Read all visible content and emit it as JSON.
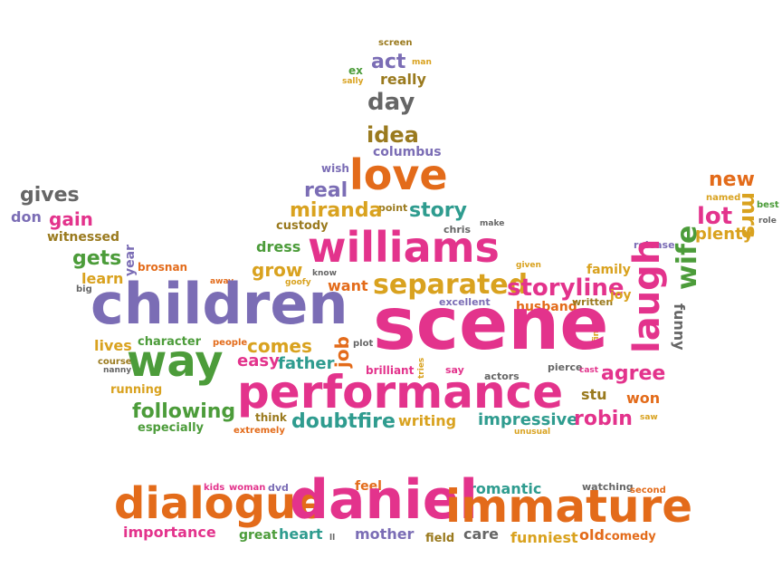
{
  "colors": {
    "orange": "#e36b1a",
    "pink": "#e3338c",
    "purple": "#7b6db5",
    "green": "#4c9c3a",
    "yellow": "#d9a21f",
    "brown": "#9a7a1e",
    "gray": "#666666",
    "teal": "#2f9c8f"
  },
  "words": [
    {
      "text": "screen",
      "color": "brown",
      "size": 10
    },
    {
      "text": "act",
      "color": "purple",
      "size": 22
    },
    {
      "text": "man",
      "color": "yellow",
      "size": 9
    },
    {
      "text": "ex",
      "color": "green",
      "size": 12
    },
    {
      "text": "sally",
      "color": "yellow",
      "size": 9
    },
    {
      "text": "really",
      "color": "brown",
      "size": 16
    },
    {
      "text": "day",
      "color": "gray",
      "size": 26
    },
    {
      "text": "idea",
      "color": "brown",
      "size": 24
    },
    {
      "text": "columbus",
      "color": "purple",
      "size": 14
    },
    {
      "text": "wish",
      "color": "purple",
      "size": 12
    },
    {
      "text": "love",
      "color": "orange",
      "size": 46
    },
    {
      "text": "real",
      "color": "purple",
      "size": 22
    },
    {
      "text": "point",
      "color": "brown",
      "size": 11
    },
    {
      "text": "story",
      "color": "teal",
      "size": 22
    },
    {
      "text": "miranda",
      "color": "yellow",
      "size": 22
    },
    {
      "text": "custody",
      "color": "brown",
      "size": 13
    },
    {
      "text": "make",
      "color": "gray",
      "size": 9
    },
    {
      "text": "chris",
      "color": "gray",
      "size": 11
    },
    {
      "text": "williams",
      "color": "pink",
      "size": 46
    },
    {
      "text": "dress",
      "color": "green",
      "size": 16
    },
    {
      "text": "know",
      "color": "gray",
      "size": 9
    },
    {
      "text": "goofy",
      "color": "yellow",
      "size": 9
    },
    {
      "text": "grow",
      "color": "yellow",
      "size": 20
    },
    {
      "text": "want",
      "color": "orange",
      "size": 16
    },
    {
      "text": "separated",
      "color": "yellow",
      "size": 30
    },
    {
      "text": "storyline",
      "color": "pink",
      "size": 26
    },
    {
      "text": "given",
      "color": "yellow",
      "size": 9
    },
    {
      "text": "excellent",
      "color": "purple",
      "size": 11
    },
    {
      "text": "husband",
      "color": "orange",
      "size": 14
    },
    {
      "text": "written",
      "color": "brown",
      "size": 11
    },
    {
      "text": "family",
      "color": "yellow",
      "size": 14
    },
    {
      "text": "joy",
      "color": "yellow",
      "size": 14
    },
    {
      "text": "release",
      "color": "purple",
      "size": 11
    },
    {
      "text": "new",
      "color": "orange",
      "size": 22
    },
    {
      "text": "named",
      "color": "yellow",
      "size": 10
    },
    {
      "text": "best",
      "color": "green",
      "size": 10
    },
    {
      "text": "role",
      "color": "gray",
      "size": 9
    },
    {
      "text": "lot",
      "color": "pink",
      "size": 26
    },
    {
      "text": "plenty",
      "color": "yellow",
      "size": 18
    },
    {
      "text": "mrs",
      "color": "yellow",
      "size": 24
    },
    {
      "text": "wife",
      "color": "green",
      "size": 30
    },
    {
      "text": "laugh",
      "color": "pink",
      "size": 40
    },
    {
      "text": "funny",
      "color": "gray",
      "size": 16
    },
    {
      "text": "fine",
      "color": "yellow",
      "size": 9
    },
    {
      "text": "gives",
      "color": "gray",
      "size": 22
    },
    {
      "text": "don",
      "color": "purple",
      "size": 16
    },
    {
      "text": "gain",
      "color": "pink",
      "size": 20
    },
    {
      "text": "witnessed",
      "color": "brown",
      "size": 14
    },
    {
      "text": "gets",
      "color": "green",
      "size": 22
    },
    {
      "text": "year",
      "color": "purple",
      "size": 14
    },
    {
      "text": "brosnan",
      "color": "orange",
      "size": 12
    },
    {
      "text": "learn",
      "color": "yellow",
      "size": 16
    },
    {
      "text": "big",
      "color": "gray",
      "size": 10
    },
    {
      "text": "away",
      "color": "orange",
      "size": 9
    },
    {
      "text": "children",
      "color": "purple",
      "size": 62
    },
    {
      "text": "scene",
      "color": "pink",
      "size": 80
    },
    {
      "text": "job",
      "color": "orange",
      "size": 20
    },
    {
      "text": "plot",
      "color": "gray",
      "size": 10
    },
    {
      "text": "lives",
      "color": "yellow",
      "size": 16
    },
    {
      "text": "character",
      "color": "green",
      "size": 13
    },
    {
      "text": "people",
      "color": "orange",
      "size": 10
    },
    {
      "text": "comes",
      "color": "yellow",
      "size": 20
    },
    {
      "text": "course",
      "color": "brown",
      "size": 10
    },
    {
      "text": "nanny",
      "color": "gray",
      "size": 9
    },
    {
      "text": "way",
      "color": "green",
      "size": 48
    },
    {
      "text": "easy",
      "color": "pink",
      "size": 18
    },
    {
      "text": "father",
      "color": "teal",
      "size": 18
    },
    {
      "text": "brilliant",
      "color": "pink",
      "size": 12
    },
    {
      "text": "tries",
      "color": "yellow",
      "size": 9
    },
    {
      "text": "say",
      "color": "pink",
      "size": 11
    },
    {
      "text": "actors",
      "color": "gray",
      "size": 11
    },
    {
      "text": "pierce",
      "color": "gray",
      "size": 11
    },
    {
      "text": "cast",
      "color": "pink",
      "size": 9
    },
    {
      "text": "agree",
      "color": "pink",
      "size": 22
    },
    {
      "text": "running",
      "color": "yellow",
      "size": 13
    },
    {
      "text": "performance",
      "color": "pink",
      "size": 50
    },
    {
      "text": "stu",
      "color": "brown",
      "size": 16
    },
    {
      "text": "won",
      "color": "orange",
      "size": 16
    },
    {
      "text": "following",
      "color": "green",
      "size": 22
    },
    {
      "text": "especially",
      "color": "green",
      "size": 13
    },
    {
      "text": "think",
      "color": "brown",
      "size": 12
    },
    {
      "text": "extremely",
      "color": "orange",
      "size": 10
    },
    {
      "text": "doubtfire",
      "color": "teal",
      "size": 22
    },
    {
      "text": "writing",
      "color": "yellow",
      "size": 16
    },
    {
      "text": "impressive",
      "color": "teal",
      "size": 18
    },
    {
      "text": "unusual",
      "color": "yellow",
      "size": 9
    },
    {
      "text": "robin",
      "color": "pink",
      "size": 22
    },
    {
      "text": "saw",
      "color": "yellow",
      "size": 9
    },
    {
      "text": "kids",
      "color": "pink",
      "size": 10
    },
    {
      "text": "woman",
      "color": "pink",
      "size": 10
    },
    {
      "text": "dvd",
      "color": "purple",
      "size": 11
    },
    {
      "text": "feel",
      "color": "orange",
      "size": 14
    },
    {
      "text": "romantic",
      "color": "teal",
      "size": 16
    },
    {
      "text": "watching",
      "color": "gray",
      "size": 11
    },
    {
      "text": "second",
      "color": "orange",
      "size": 10
    },
    {
      "text": "dialogue",
      "color": "orange",
      "size": 48
    },
    {
      "text": "daniel",
      "color": "pink",
      "size": 60
    },
    {
      "text": "immature",
      "color": "orange",
      "size": 50
    },
    {
      "text": "importance",
      "color": "pink",
      "size": 16
    },
    {
      "text": "great",
      "color": "green",
      "size": 14
    },
    {
      "text": "heart",
      "color": "teal",
      "size": 16
    },
    {
      "text": "ll",
      "color": "gray",
      "size": 9
    },
    {
      "text": "mother",
      "color": "purple",
      "size": 16
    },
    {
      "text": "field",
      "color": "brown",
      "size": 13
    },
    {
      "text": "care",
      "color": "gray",
      "size": 16
    },
    {
      "text": "funniest",
      "color": "yellow",
      "size": 16
    },
    {
      "text": "old",
      "color": "orange",
      "size": 16
    },
    {
      "text": "comedy",
      "color": "orange",
      "size": 13
    }
  ]
}
